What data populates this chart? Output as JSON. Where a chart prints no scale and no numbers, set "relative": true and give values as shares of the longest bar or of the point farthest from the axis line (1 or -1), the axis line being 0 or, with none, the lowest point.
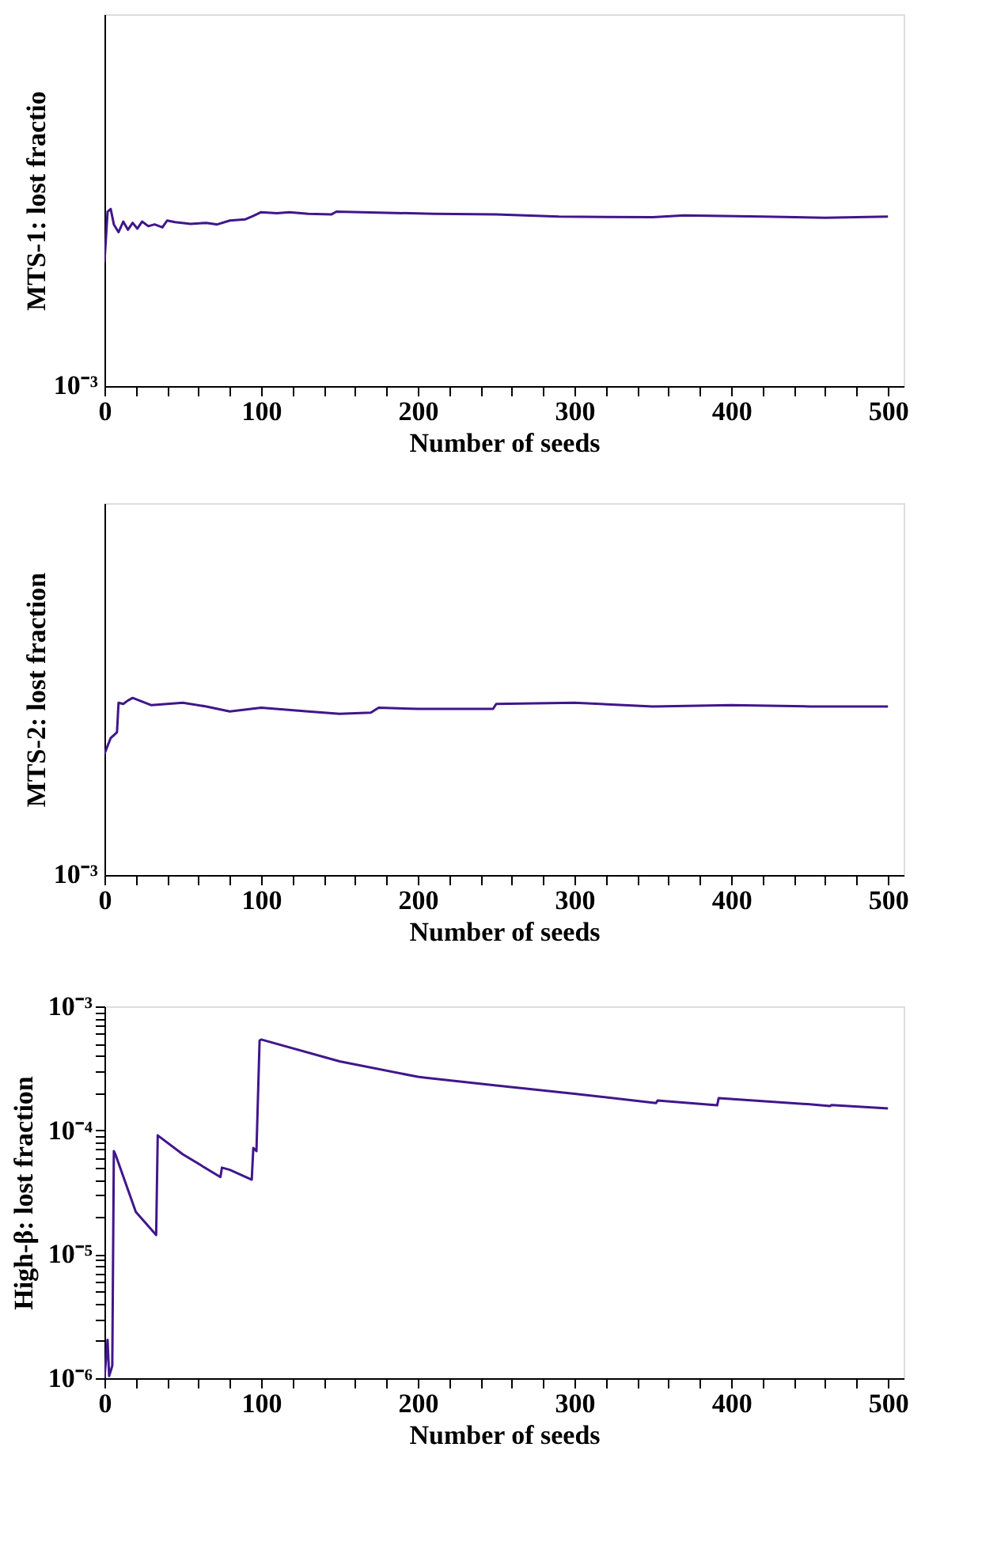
{
  "chart_data": [
    {
      "type": "line",
      "xlabel": "Number of seeds",
      "ylabel": "MTS-1: lost fractio",
      "relative": true,
      "annotations": [
        "10⁻³"
      ],
      "grid": false,
      "color": "#40168c",
      "line_style": "solid",
      "marker": "none",
      "x": [
        0,
        2,
        4,
        6,
        9,
        12,
        15,
        18,
        21,
        24,
        28,
        32,
        37,
        40,
        45,
        55,
        65,
        72,
        80,
        90,
        95,
        100,
        110,
        118,
        130,
        145,
        148,
        180,
        210,
        250,
        290,
        350,
        370,
        420,
        460,
        500
      ],
      "values": [
        0.699,
        0.985,
        1,
        0.913,
        0.869,
        0.929,
        0.883,
        0.922,
        0.889,
        0.929,
        0.903,
        0.913,
        0.896,
        0.935,
        0.926,
        0.916,
        0.922,
        0.913,
        0.935,
        0.942,
        0.961,
        0.982,
        0.976,
        0.982,
        0.973,
        0.97,
        0.985,
        0.979,
        0.973,
        0.97,
        0.957,
        0.954,
        0.964,
        0.957,
        0.951,
        0.957
      ],
      "xlim": [
        0,
        510
      ],
      "xticks": [
        0,
        {
          "value": 20,
          "label": null
        },
        {
          "value": 40,
          "label": null
        },
        {
          "value": 60,
          "label": null
        },
        {
          "value": 80,
          "label": null
        },
        100,
        {
          "value": 120,
          "label": null
        },
        {
          "value": 140,
          "label": null
        },
        {
          "value": 160,
          "label": null
        },
        {
          "value": 180,
          "label": null
        },
        200,
        {
          "value": 220,
          "label": null
        },
        {
          "value": 240,
          "label": null
        },
        {
          "value": 260,
          "label": null
        },
        {
          "value": 280,
          "label": null
        },
        300,
        {
          "value": 320,
          "label": null
        },
        {
          "value": 340,
          "label": null
        },
        {
          "value": 360,
          "label": null
        },
        {
          "value": 380,
          "label": null
        },
        400,
        {
          "value": 420,
          "label": null
        },
        {
          "value": 440,
          "label": null
        },
        {
          "value": 460,
          "label": null
        },
        {
          "value": 480,
          "label": null
        },
        500
      ]
    },
    {
      "type": "line",
      "xlabel": "Number of seeds",
      "ylabel": "MTS-2: lost fraction",
      "relative": true,
      "annotations": [
        "10⁻³"
      ],
      "grid": false,
      "color": "#40168c",
      "line_style": "solid",
      "marker": "none",
      "x": [
        0,
        4,
        8,
        9,
        12,
        15,
        18,
        30,
        40,
        50,
        65,
        80,
        100,
        130,
        150,
        170,
        175,
        200,
        248,
        250,
        300,
        350,
        400,
        450,
        500
      ],
      "values": [
        0.684,
        0.774,
        0.806,
        0.973,
        0.966,
        0.986,
        1,
        0.959,
        0.966,
        0.973,
        0.952,
        0.924,
        0.945,
        0.924,
        0.91,
        0.917,
        0.945,
        0.938,
        0.938,
        0.966,
        0.973,
        0.952,
        0.959,
        0.952,
        0.952
      ],
      "xlim": [
        0,
        510
      ],
      "xticks": [
        0,
        {
          "value": 20,
          "label": null
        },
        {
          "value": 40,
          "label": null
        },
        {
          "value": 60,
          "label": null
        },
        {
          "value": 80,
          "label": null
        },
        100,
        {
          "value": 120,
          "label": null
        },
        {
          "value": 140,
          "label": null
        },
        {
          "value": 160,
          "label": null
        },
        {
          "value": 180,
          "label": null
        },
        200,
        {
          "value": 220,
          "label": null
        },
        {
          "value": 240,
          "label": null
        },
        {
          "value": 260,
          "label": null
        },
        {
          "value": 280,
          "label": null
        },
        300,
        {
          "value": 320,
          "label": null
        },
        {
          "value": 340,
          "label": null
        },
        {
          "value": 360,
          "label": null
        },
        {
          "value": 380,
          "label": null
        },
        400,
        {
          "value": 420,
          "label": null
        },
        {
          "value": 440,
          "label": null
        },
        {
          "value": 460,
          "label": null
        },
        {
          "value": 480,
          "label": null
        },
        500
      ]
    },
    {
      "type": "line",
      "xlabel": "Number of seeds",
      "ylabel": "High-β: lost fraction",
      "log": "y",
      "grid": false,
      "color": "#40168c",
      "line_style": "solid",
      "marker": "none",
      "x": [
        0,
        2,
        3,
        5,
        6,
        7,
        20,
        33,
        34,
        50,
        74,
        75,
        80,
        94,
        95,
        97,
        99,
        100,
        150,
        200,
        205,
        250,
        300,
        352,
        353,
        391,
        392,
        450,
        463,
        464,
        500
      ],
      "values": [
        1e-06,
        2.04e-06,
        1.04e-06,
        1.26e-06,
        6.8e-05,
        6.4e-05,
        2.2e-05,
        1.43e-05,
        9.1e-05,
        6.4e-05,
        4.2e-05,
        5e-05,
        4.8e-05,
        4e-05,
        7.2e-05,
        6.8e-05,
        0.00053,
        0.00054,
        0.00036,
        0.00027,
        0.000265,
        0.00023,
        0.000197,
        0.000166,
        0.000174,
        0.000159,
        0.000182,
        0.000162,
        0.000157,
        0.00016,
        0.00015
      ],
      "xlim": [
        0,
        510
      ],
      "xticks": [
        0,
        {
          "value": 20,
          "label": null
        },
        {
          "value": 40,
          "label": null
        },
        {
          "value": 60,
          "label": null
        },
        {
          "value": 80,
          "label": null
        },
        100,
        {
          "value": 120,
          "label": null
        },
        {
          "value": 140,
          "label": null
        },
        {
          "value": 160,
          "label": null
        },
        {
          "value": 180,
          "label": null
        },
        200,
        {
          "value": 220,
          "label": null
        },
        {
          "value": 240,
          "label": null
        },
        {
          "value": 260,
          "label": null
        },
        {
          "value": 280,
          "label": null
        },
        300,
        {
          "value": 320,
          "label": null
        },
        {
          "value": 340,
          "label": null
        },
        {
          "value": 360,
          "label": null
        },
        {
          "value": 380,
          "label": null
        },
        400,
        {
          "value": 420,
          "label": null
        },
        {
          "value": 440,
          "label": null
        },
        {
          "value": 460,
          "label": null
        },
        {
          "value": 480,
          "label": null
        },
        500
      ],
      "ylim": [
        1e-06,
        0.001
      ],
      "yticks": [
        {
          "value": 1e-06,
          "label": "10⁻⁶"
        },
        {
          "value": 2e-06,
          "label": null
        },
        {
          "value": 3e-06,
          "label": null
        },
        {
          "value": 4e-06,
          "label": null
        },
        {
          "value": 5e-06,
          "label": null
        },
        {
          "value": 6e-06,
          "label": null
        },
        {
          "value": 7e-06,
          "label": null
        },
        {
          "value": 8e-06,
          "label": null
        },
        {
          "value": 9e-06,
          "label": null
        },
        {
          "value": 1e-05,
          "label": "10⁻⁵"
        },
        {
          "value": 2e-05,
          "label": null
        },
        {
          "value": 3e-05,
          "label": null
        },
        {
          "value": 4e-05,
          "label": null
        },
        {
          "value": 5e-05,
          "label": null
        },
        {
          "value": 6e-05,
          "label": null
        },
        {
          "value": 7e-05,
          "label": null
        },
        {
          "value": 8e-05,
          "label": null
        },
        {
          "value": 9e-05,
          "label": null
        },
        {
          "value": 0.0001,
          "label": "10⁻⁴"
        },
        {
          "value": 0.0002,
          "label": null
        },
        {
          "value": 0.0003,
          "label": null
        },
        {
          "value": 0.0004,
          "label": null
        },
        {
          "value": 0.0005,
          "label": null
        },
        {
          "value": 0.0006,
          "label": null
        },
        {
          "value": 0.0007,
          "label": null
        },
        {
          "value": 0.0008,
          "label": null
        },
        {
          "value": 0.0009,
          "label": null
        },
        {
          "value": 0.001,
          "label": "10⁻³"
        }
      ]
    }
  ]
}
